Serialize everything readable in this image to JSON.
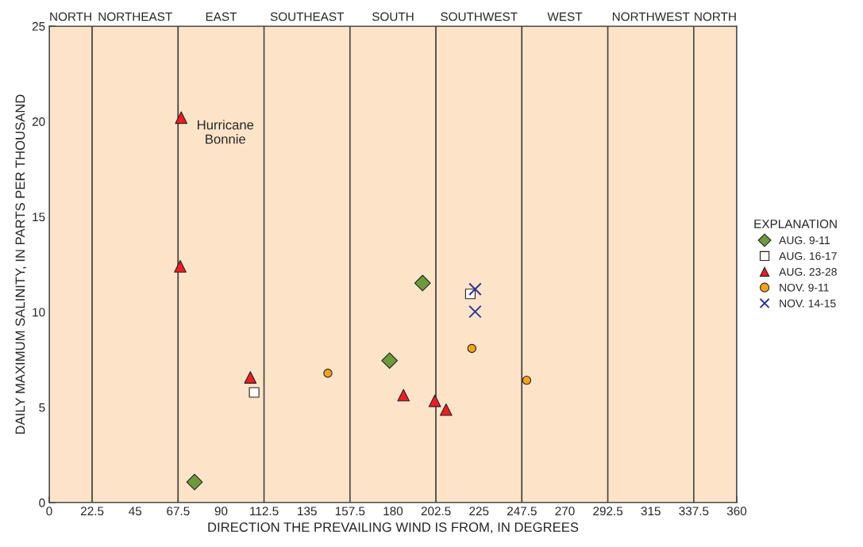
{
  "chart_data": {
    "type": "scatter",
    "xlabel": "DIRECTION THE PREVAILING WIND IS FROM, IN DEGREES",
    "ylabel": "DAILY MAXIMUM SALINITY, IN PARTS PER THOUSAND",
    "legend_title": "EXPLANATION",
    "legend": "right",
    "xlim": [
      0,
      360
    ],
    "ylim": [
      0,
      25
    ],
    "xticks": [
      0,
      22.5,
      45,
      67.5,
      90,
      112.5,
      135,
      157.5,
      180,
      202.5,
      225,
      247.5,
      270,
      292.5,
      315,
      337.5,
      360
    ],
    "yticks": [
      0,
      5,
      10,
      15,
      20,
      25
    ],
    "bands": [
      {
        "axis": "x",
        "from": 0,
        "to": 22.5,
        "label": "NORTH",
        "color": "#fde4c8"
      },
      {
        "axis": "x",
        "from": 22.5,
        "to": 67.5,
        "label": "NORTHEAST",
        "color": "#fde4c8"
      },
      {
        "axis": "x",
        "from": 67.5,
        "to": 112.5,
        "label": "EAST",
        "color": "#fde4c8"
      },
      {
        "axis": "x",
        "from": 112.5,
        "to": 157.5,
        "label": "SOUTHEAST",
        "color": "#fde4c8"
      },
      {
        "axis": "x",
        "from": 157.5,
        "to": 202.5,
        "label": "SOUTH",
        "color": "#fde4c8"
      },
      {
        "axis": "x",
        "from": 202.5,
        "to": 247.5,
        "label": "SOUTHWEST",
        "color": "#fde4c8"
      },
      {
        "axis": "x",
        "from": 247.5,
        "to": 292.5,
        "label": "WEST",
        "color": "#fde4c8"
      },
      {
        "axis": "x",
        "from": 292.5,
        "to": 337.5,
        "label": "NORTHWEST",
        "color": "#fde4c8"
      },
      {
        "axis": "x",
        "from": 337.5,
        "to": 360,
        "label": "NORTH",
        "color": "#fde4c8"
      }
    ],
    "annotations": [
      {
        "text": "Hurricane\nBonnie",
        "x": 69.1,
        "y": 20.2
      }
    ],
    "series": [
      {
        "name": "AUG. 9-11",
        "color": "#6f9a3c",
        "marker": "diamond",
        "x": [
          76.1,
          178.2,
          195.5
        ],
        "values": [
          1.08,
          7.45,
          11.52
        ]
      },
      {
        "name": "AUG. 16-17",
        "color": "#ffffff",
        "marker": "square",
        "x": [
          107.3,
          220.5
        ],
        "values": [
          5.78,
          10.95
        ]
      },
      {
        "name": "AUG. 23-28",
        "color": "#ee1c25",
        "marker": "triangle",
        "x": [
          69.1,
          68.6,
          105.3,
          185.5,
          201.9,
          207.8
        ],
        "values": [
          20.2,
          12.4,
          6.57,
          5.64,
          5.34,
          4.88
        ]
      },
      {
        "name": "NOV. 9-11",
        "color": "#f7a21b",
        "marker": "circle",
        "x": [
          145.9,
          221.3,
          250.0
        ],
        "values": [
          6.79,
          8.09,
          6.42
        ]
      },
      {
        "name": "NOV. 14-15",
        "color": "#2e3192",
        "marker": "cross",
        "x": [
          223.0,
          223.0
        ],
        "values": [
          11.2,
          10.02
        ]
      }
    ]
  }
}
